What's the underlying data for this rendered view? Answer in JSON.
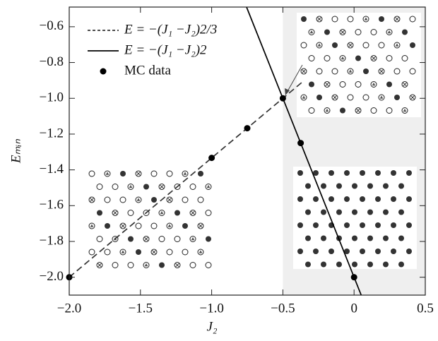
{
  "chart_data": {
    "type": "line",
    "x_label": "J₂",
    "y_label": "Eₘᵢₙ",
    "xlim": [
      -2.0,
      0.5
    ],
    "ylim": [
      -2.1,
      -0.49
    ],
    "xticks": [
      {
        "value": -2.0,
        "label": "−2.0"
      },
      {
        "value": -1.5,
        "label": "−1.5"
      },
      {
        "value": -1.0,
        "label": "−1.0"
      },
      {
        "value": -0.5,
        "label": "−0.5"
      },
      {
        "value": 0,
        "label": "0"
      },
      {
        "value": 0.5,
        "label": "0.5"
      }
    ],
    "yticks": [
      {
        "value": -0.6,
        "label": "−0.6"
      },
      {
        "value": -0.8,
        "label": "−0.8"
      },
      {
        "value": -1.0,
        "label": "−1.0"
      },
      {
        "value": -1.2,
        "label": "−1.2"
      },
      {
        "value": -1.4,
        "label": "−1.4"
      },
      {
        "value": -1.6,
        "label": "−1.6"
      },
      {
        "value": -1.8,
        "label": "−1.8"
      },
      {
        "value": -2.0,
        "label": "−2.0"
      }
    ],
    "shaded_region": [
      -0.5,
      0.5
    ],
    "series": [
      {
        "name": "E = −(J₁ −J₂)2/3",
        "style": "dashed",
        "color": "#333333",
        "x": [
          -2.0,
          -0.35
        ],
        "values": [
          -2.0,
          -0.9
        ]
      },
      {
        "name": "E = −(J₁ −J₂)2",
        "style": "solid",
        "color": "#000000",
        "x": [
          -0.755,
          0.05
        ],
        "values": [
          -0.49,
          -2.1
        ]
      },
      {
        "name": "MC data",
        "style": "markers",
        "color": "#000000",
        "x": [
          -2.0,
          -1.0,
          -0.75,
          -0.5,
          -0.375,
          0
        ],
        "values": [
          -2.0,
          -1.333,
          -1.167,
          -1.0,
          -1.25,
          -2.0
        ]
      }
    ]
  }
}
